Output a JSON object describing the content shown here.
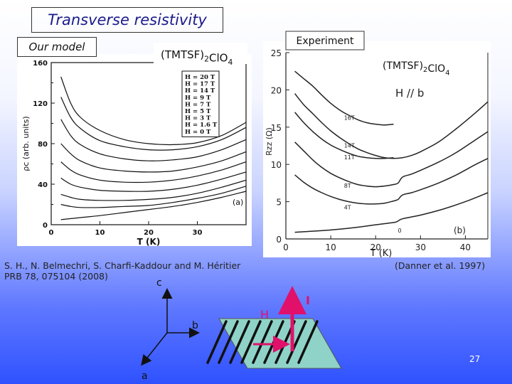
{
  "slide": {
    "title": "Transverse resistivity",
    "our_model": "Our model",
    "reference_left": "S. H., N. Belmechri, S. Charfi-Kaddour and M. Héritier PRB 78, 075104 (2008)",
    "reference_right": "(Danner et al. 1997)",
    "page_number": "27"
  },
  "diagram": {
    "axis_c": "c",
    "axis_b": "b",
    "axis_a": "a",
    "field_label": "H",
    "current_label": "I"
  },
  "chart_data": [
    {
      "type": "line",
      "title": "(TMTSF)2ClO4",
      "xlabel": "T (K)",
      "ylabel": "ρc (arb. units)",
      "xlim": [
        0,
        40
      ],
      "ylim": [
        0,
        160
      ],
      "xticks": [
        0,
        10,
        20,
        30
      ],
      "yticks": [
        0,
        40,
        80,
        120,
        160
      ],
      "ytick_extra": [
        20,
        60,
        100,
        140
      ],
      "panel_label": "(a)",
      "legend_position": "top-right",
      "series": [
        {
          "name": "H = 20 T",
          "x": [
            2,
            4,
            6,
            10,
            15,
            20,
            25,
            30,
            35,
            40
          ],
          "y": [
            146,
            120,
            106,
            93,
            84,
            80,
            79,
            81,
            88,
            101
          ]
        },
        {
          "name": "H = 17 T",
          "x": [
            2,
            4,
            6,
            10,
            15,
            20,
            25,
            30,
            35,
            40
          ],
          "y": [
            126,
            106,
            95,
            83,
            77,
            74,
            74,
            77,
            84,
            96
          ]
        },
        {
          "name": "H = 14 T",
          "x": [
            2,
            4,
            6,
            10,
            15,
            20,
            25,
            30,
            35,
            40
          ],
          "y": [
            104,
            88,
            79,
            70,
            65,
            63,
            64,
            67,
            74,
            84
          ]
        },
        {
          "name": "H = 9 T",
          "x": [
            2,
            4,
            6,
            10,
            15,
            20,
            25,
            30,
            35,
            40
          ],
          "y": [
            80,
            70,
            63,
            56,
            53,
            52,
            53,
            57,
            63,
            72
          ]
        },
        {
          "name": "H = 7 T",
          "x": [
            2,
            4,
            6,
            10,
            15,
            20,
            25,
            30,
            35,
            40
          ],
          "y": [
            62,
            54,
            49,
            44,
            42,
            42,
            44,
            48,
            54,
            62
          ]
        },
        {
          "name": "H = 5 T",
          "x": [
            2,
            4,
            6,
            10,
            15,
            20,
            25,
            30,
            35,
            40
          ],
          "y": [
            46,
            40,
            37,
            34,
            33,
            33,
            35,
            39,
            45,
            52
          ]
        },
        {
          "name": "H = 3 T",
          "x": [
            2,
            4,
            6,
            10,
            15,
            20,
            25,
            30,
            35,
            40
          ],
          "y": [
            30,
            27,
            25,
            24,
            24,
            25,
            27,
            31,
            37,
            44
          ]
        },
        {
          "name": "H = 1.6 T",
          "x": [
            2,
            4,
            6,
            10,
            15,
            20,
            25,
            30,
            35,
            40
          ],
          "y": [
            20,
            18,
            17,
            17,
            18,
            19,
            22,
            26,
            31,
            38
          ]
        },
        {
          "name": "H = 0 T",
          "x": [
            2,
            4,
            6,
            10,
            15,
            20,
            25,
            30,
            35,
            40
          ],
          "y": [
            5,
            6,
            7,
            9,
            12,
            15,
            18,
            22,
            27,
            33
          ]
        }
      ]
    },
    {
      "type": "line",
      "badge": "Experiment",
      "title": "(TMTSF)2ClO4",
      "xlabel": "T (K)",
      "ylabel": "Rzz (Ω)",
      "xlim": [
        0,
        45
      ],
      "ylim": [
        0,
        25
      ],
      "xticks": [
        0,
        10,
        20,
        30,
        40
      ],
      "yticks": [
        0,
        5,
        10,
        15,
        20,
        25
      ],
      "annotation": "H // b",
      "panel_label": "(b)",
      "series": [
        {
          "name": "16T",
          "x": [
            2,
            4,
            6,
            8,
            10,
            12,
            14,
            16,
            18,
            20,
            22,
            24
          ],
          "y": [
            22.5,
            21.5,
            20.5,
            19.3,
            18.2,
            17.3,
            16.6,
            16.0,
            15.6,
            15.4,
            15.3,
            15.4
          ]
        },
        {
          "name": "14T",
          "x": [
            2,
            4,
            6,
            8,
            10,
            12,
            14,
            16,
            18,
            20,
            22,
            24,
            26,
            28,
            30,
            34,
            38,
            42,
            45
          ],
          "y": [
            19.5,
            18.0,
            16.8,
            15.6,
            14.5,
            13.6,
            12.8,
            12.1,
            11.6,
            11.2,
            10.9,
            10.8,
            10.9,
            11.2,
            11.7,
            13.0,
            14.8,
            16.8,
            18.4
          ]
        },
        {
          "name": "11T",
          "x": [
            2,
            4,
            6,
            8,
            10,
            12,
            14,
            16,
            18,
            20,
            22,
            24
          ],
          "y": [
            17.0,
            15.6,
            14.4,
            13.4,
            12.6,
            12.0,
            11.5,
            11.1,
            10.9,
            10.8,
            10.8,
            10.9
          ]
        },
        {
          "name": "8T",
          "x": [
            2,
            4,
            6,
            8,
            10,
            12,
            14,
            16,
            18,
            20,
            22,
            24,
            25,
            26,
            28,
            30,
            34,
            38,
            42,
            45
          ],
          "y": [
            13.0,
            11.8,
            10.6,
            9.6,
            8.8,
            8.2,
            7.7,
            7.3,
            7.1,
            7.0,
            7.1,
            7.3,
            7.5,
            8.3,
            8.7,
            9.2,
            10.3,
            11.6,
            13.2,
            14.4
          ]
        },
        {
          "name": "4T",
          "x": [
            2,
            4,
            6,
            8,
            10,
            12,
            14,
            16,
            18,
            20,
            22,
            24,
            25,
            26,
            28,
            30,
            34,
            38,
            42,
            45
          ],
          "y": [
            8.6,
            7.6,
            6.8,
            6.2,
            5.7,
            5.3,
            5.0,
            4.8,
            4.7,
            4.7,
            4.8,
            5.1,
            5.3,
            5.9,
            6.2,
            6.6,
            7.5,
            8.6,
            9.9,
            10.8
          ]
        },
        {
          "name": "0",
          "x": [
            2,
            5,
            10,
            15,
            20,
            24,
            25,
            26,
            30,
            35,
            40,
            45
          ],
          "y": [
            0.9,
            1.0,
            1.2,
            1.5,
            1.9,
            2.2,
            2.4,
            2.7,
            3.2,
            4.0,
            5.0,
            6.2
          ]
        }
      ]
    }
  ]
}
